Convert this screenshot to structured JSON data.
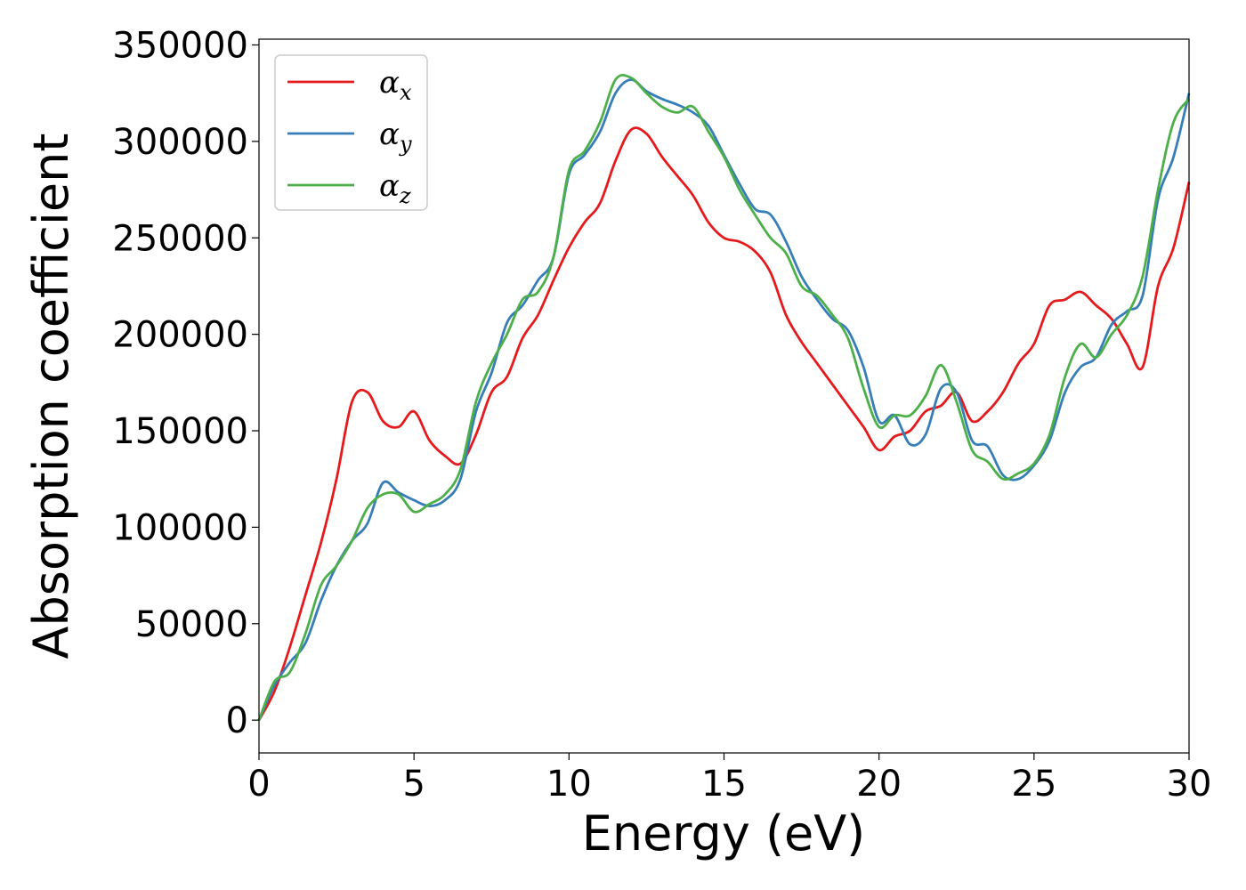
{
  "chart_data": {
    "type": "line",
    "title": "",
    "xlabel": "Energy (eV)",
    "ylabel": "Absorption coefficient",
    "xlim": [
      0,
      30
    ],
    "ylim": [
      -17000,
      353000
    ],
    "xticks": [
      "0",
      "5",
      "10",
      "15",
      "20",
      "25",
      "30"
    ],
    "yticks": [
      "0",
      "50000",
      "100000",
      "150000",
      "200000",
      "250000",
      "300000",
      "350000"
    ],
    "grid": false,
    "legend_position": "top-left",
    "series": [
      {
        "name": "αx",
        "base": "α",
        "sub": "x",
        "color": "#e41a1c",
        "x": [
          0,
          0.5,
          1,
          1.5,
          2,
          2.5,
          3,
          3.5,
          4,
          4.5,
          5,
          5.5,
          6,
          6.5,
          7,
          7.5,
          8,
          8.5,
          9,
          9.5,
          10,
          10.5,
          11,
          11.5,
          12,
          12.5,
          13,
          13.5,
          14,
          14.5,
          15,
          15.5,
          16,
          16.5,
          17,
          17.5,
          18,
          18.5,
          19,
          19.5,
          20,
          20.5,
          21,
          21.5,
          22,
          22.5,
          23,
          23.5,
          24,
          24.5,
          25,
          25.5,
          26,
          26.5,
          27,
          27.5,
          28,
          28.5,
          29,
          29.5,
          30
        ],
        "y": [
          0,
          15000,
          38000,
          65000,
          92000,
          125000,
          165000,
          170000,
          155000,
          152000,
          160000,
          145000,
          137000,
          133000,
          148000,
          170000,
          178000,
          198000,
          210000,
          228000,
          245000,
          258000,
          268000,
          290000,
          306000,
          304000,
          292000,
          282000,
          272000,
          258000,
          250000,
          248000,
          243000,
          232000,
          210000,
          196000,
          185000,
          174000,
          163000,
          152000,
          140000,
          147000,
          150000,
          160000,
          163000,
          170000,
          155000,
          160000,
          170000,
          185000,
          195000,
          215000,
          218000,
          222000,
          215000,
          208000,
          195000,
          183000,
          225000,
          245000,
          279000
        ]
      },
      {
        "name": "αy",
        "base": "α",
        "sub": "y",
        "color": "#377eb8",
        "x": [
          0,
          0.5,
          1,
          1.5,
          2,
          2.5,
          3,
          3.5,
          4,
          4.5,
          5,
          5.5,
          6,
          6.5,
          7,
          7.5,
          8,
          8.5,
          9,
          9.5,
          10,
          10.5,
          11,
          11.5,
          12,
          12.5,
          13,
          13.5,
          14,
          14.5,
          15,
          15.5,
          16,
          16.5,
          17,
          17.5,
          18,
          18.5,
          19,
          19.5,
          20,
          20.5,
          21,
          21.5,
          22,
          22.5,
          23,
          23.5,
          24,
          24.5,
          25,
          25.5,
          26,
          26.5,
          27,
          27.5,
          28,
          28.5,
          29,
          29.5,
          30
        ],
        "y": [
          0,
          18000,
          30000,
          40000,
          62000,
          80000,
          93000,
          102000,
          123000,
          118000,
          114000,
          111000,
          114000,
          125000,
          160000,
          180000,
          206000,
          215000,
          228000,
          240000,
          283000,
          293000,
          305000,
          325000,
          332000,
          326000,
          322000,
          319000,
          315000,
          308000,
          293000,
          278000,
          265000,
          262000,
          248000,
          230000,
          218000,
          208000,
          202000,
          183000,
          155000,
          158000,
          143000,
          148000,
          172000,
          170000,
          145000,
          142000,
          127000,
          125000,
          132000,
          145000,
          170000,
          183000,
          188000,
          205000,
          212000,
          220000,
          270000,
          292000,
          325000
        ]
      },
      {
        "name": "αz",
        "base": "α",
        "sub": "z",
        "color": "#4daf4a",
        "x": [
          0,
          0.5,
          1,
          1.5,
          2,
          2.5,
          3,
          3.5,
          4,
          4.5,
          5,
          5.5,
          6,
          6.5,
          7,
          7.5,
          8,
          8.5,
          9,
          9.5,
          10,
          10.5,
          11,
          11.5,
          12,
          12.5,
          13,
          13.5,
          14,
          14.5,
          15,
          15.5,
          16,
          16.5,
          17,
          17.5,
          18,
          18.5,
          19,
          19.5,
          20,
          20.5,
          21,
          21.5,
          22,
          22.5,
          23,
          23.5,
          24,
          24.5,
          25,
          25.5,
          26,
          26.5,
          27,
          27.5,
          28,
          28.5,
          29,
          29.5,
          30
        ],
        "y": [
          0,
          20000,
          25000,
          45000,
          70000,
          80000,
          93000,
          110000,
          117000,
          117000,
          108000,
          112000,
          117000,
          130000,
          165000,
          185000,
          200000,
          218000,
          222000,
          240000,
          285000,
          295000,
          310000,
          332000,
          333000,
          325000,
          318000,
          315000,
          318000,
          305000,
          292000,
          275000,
          262000,
          250000,
          242000,
          225000,
          220000,
          210000,
          198000,
          172000,
          152000,
          158000,
          158000,
          168000,
          184000,
          165000,
          140000,
          134000,
          125000,
          128000,
          133000,
          148000,
          178000,
          195000,
          188000,
          200000,
          210000,
          230000,
          275000,
          310000,
          322000
        ]
      }
    ]
  }
}
